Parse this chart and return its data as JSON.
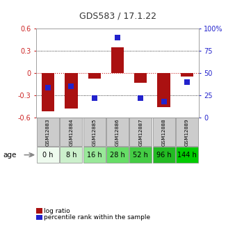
{
  "title": "GDS583 / 17.1.22",
  "samples": [
    "GSM12883",
    "GSM12884",
    "GSM12885",
    "GSM12886",
    "GSM12887",
    "GSM12888",
    "GSM12889"
  ],
  "ages": [
    "0 h",
    "8 h",
    "16 h",
    "28 h",
    "52 h",
    "96 h",
    "144 h"
  ],
  "log_ratios": [
    -0.52,
    -0.48,
    -0.07,
    0.35,
    -0.13,
    -0.46,
    -0.05
  ],
  "percentile_ranks": [
    34,
    35,
    22,
    90,
    22,
    18,
    40
  ],
  "ylim_left": [
    -0.6,
    0.6
  ],
  "ylim_right": [
    0,
    100
  ],
  "yticks_left": [
    -0.6,
    -0.3,
    0.0,
    0.3,
    0.6
  ],
  "yticks_right": [
    0,
    25,
    50,
    75,
    100
  ],
  "ytick_labels_right": [
    "0",
    "25",
    "50",
    "75",
    "100%"
  ],
  "bar_color": "#aa1111",
  "dot_color": "#2222cc",
  "bar_width": 0.55,
  "dot_size": 40,
  "grid_color": "#000000",
  "zero_line_color": "#cc2222",
  "age_colors": [
    "#eefaee",
    "#ccf0cc",
    "#99e899",
    "#66dd66",
    "#44cc44",
    "#22bb22",
    "#00cc00"
  ],
  "bg_sample_color": "#cccccc",
  "age_label": "age",
  "legend_items": [
    "log ratio",
    "percentile rank within the sample"
  ]
}
